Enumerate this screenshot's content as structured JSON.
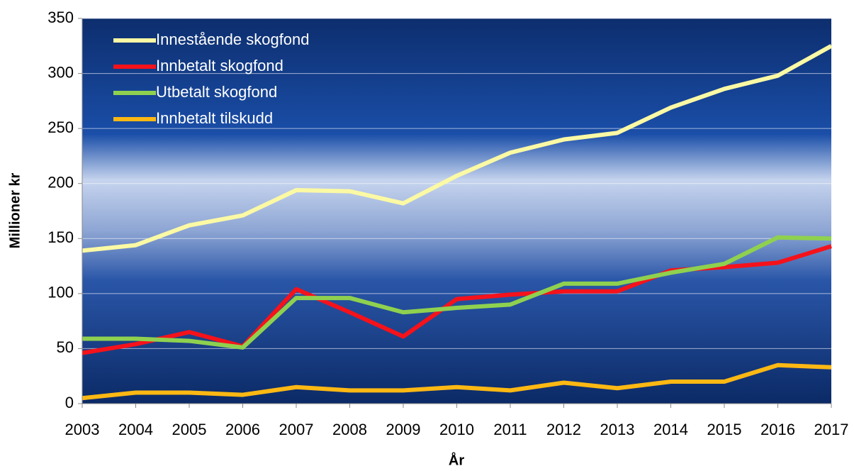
{
  "chart_data": {
    "type": "line",
    "y_label": "Millioner kr",
    "x_label": "År",
    "categories": [
      "2003",
      "2004",
      "2005",
      "2006",
      "2007",
      "2008",
      "2009",
      "2010",
      "2011",
      "2012",
      "2013",
      "2014",
      "2015",
      "2016",
      "2017"
    ],
    "series": [
      {
        "name": "Innestående skogfond",
        "color": "#fbf9a4",
        "values": [
          139,
          144,
          162,
          171,
          194,
          193,
          182,
          207,
          228,
          240,
          246,
          269,
          286,
          298,
          325
        ]
      },
      {
        "name": "Innbetalt skogfond",
        "color": "#f5121b",
        "values": [
          46,
          54,
          65,
          52,
          104,
          83,
          61,
          95,
          99,
          102,
          102,
          121,
          124,
          128,
          143
        ]
      },
      {
        "name": "Utbetalt skogfond",
        "color": "#8fd14f",
        "values": [
          59,
          59,
          57,
          51,
          96,
          96,
          83,
          87,
          90,
          109,
          109,
          119,
          127,
          151,
          150
        ]
      },
      {
        "name": "Innbetalt tilskudd",
        "color": "#fdb813",
        "values": [
          5,
          10,
          10,
          8,
          15,
          12,
          12,
          15,
          12,
          19,
          14,
          20,
          20,
          35,
          33
        ]
      }
    ],
    "ylim": [
      0,
      350
    ],
    "yticks": [
      0,
      50,
      100,
      150,
      200,
      250,
      300,
      350
    ],
    "grid": true
  }
}
